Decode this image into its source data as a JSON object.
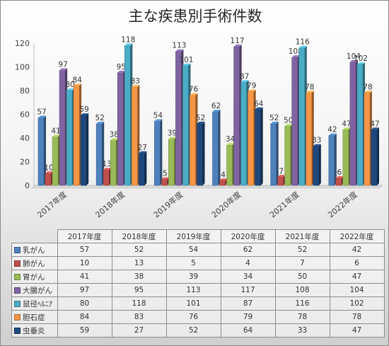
{
  "chart_data": {
    "type": "bar",
    "title": "主な疾患別手術件数",
    "categories": [
      "2017年度",
      "2018年度",
      "2019年度",
      "2020年度",
      "2021年度",
      "2022年度"
    ],
    "ylim": [
      0,
      120
    ],
    "yticks": [
      0,
      20,
      40,
      60,
      80,
      100,
      120
    ],
    "grid": false,
    "legend": "data-table-below",
    "series": [
      {
        "name": "乳がん",
        "color": "#4f81bd",
        "values": [
          57,
          52,
          54,
          62,
          52,
          42
        ]
      },
      {
        "name": "肺がん",
        "color": "#c0504d",
        "values": [
          10,
          13,
          5,
          4,
          7,
          6
        ]
      },
      {
        "name": "胃がん",
        "color": "#9bbb59",
        "values": [
          41,
          38,
          39,
          34,
          50,
          47
        ]
      },
      {
        "name": "大腸がん",
        "color": "#8064a2",
        "values": [
          97,
          95,
          113,
          117,
          108,
          104
        ]
      },
      {
        "name": "鼠径ﾍﾙﾆｱ",
        "color": "#4bacc6",
        "values": [
          80,
          118,
          101,
          87,
          116,
          102
        ]
      },
      {
        "name": "胆石症",
        "color": "#f79646",
        "values": [
          84,
          83,
          76,
          79,
          78,
          78
        ]
      },
      {
        "name": "虫垂炎",
        "color": "#1f497d",
        "values": [
          59,
          27,
          52,
          64,
          33,
          47
        ]
      }
    ]
  }
}
